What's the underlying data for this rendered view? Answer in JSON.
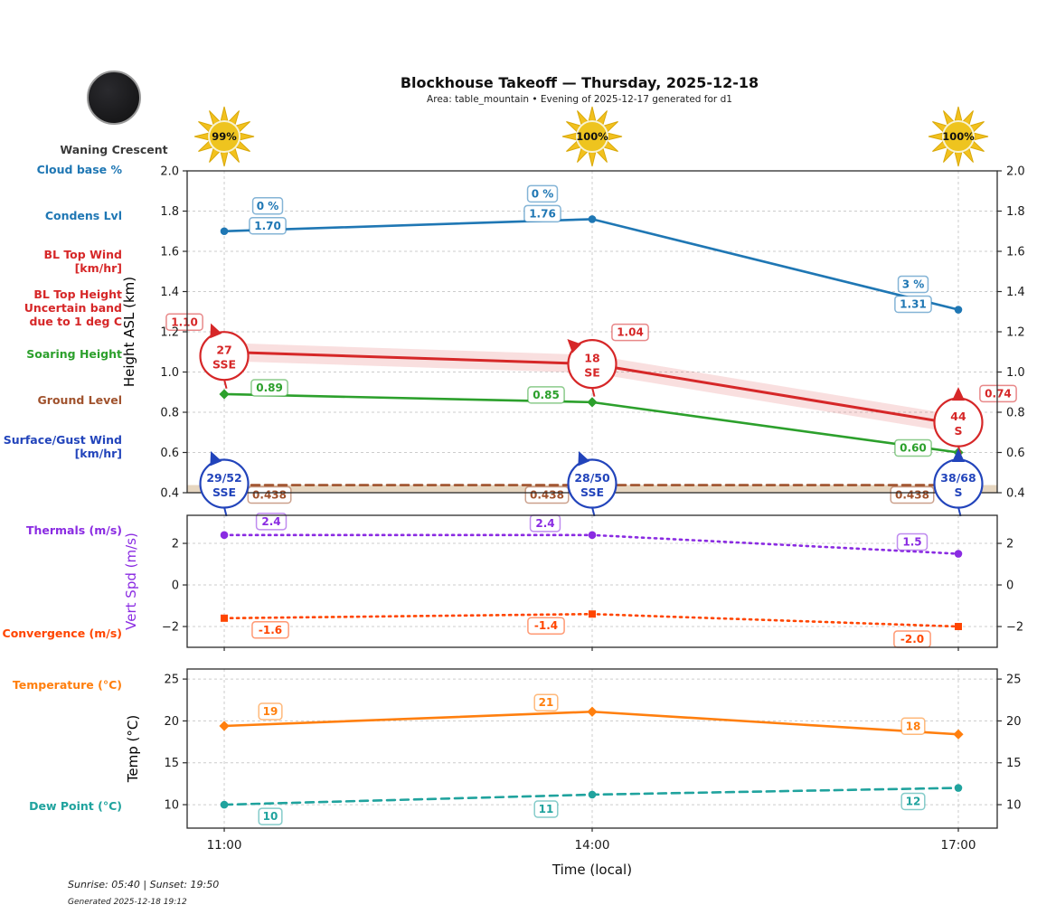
{
  "header": {
    "title": "Blockhouse Takeoff — Thursday, 2025-12-18",
    "subtitle": "Area: table_mountain • Evening of 2025-12-17 generated for d1"
  },
  "moon": {
    "label": "Waning Crescent"
  },
  "sun_markers": [
    "99%",
    "100%",
    "100%"
  ],
  "left_labels": [
    {
      "text": "Cloud base %",
      "color": "#1f77b4"
    },
    {
      "text": "Condens Lvl",
      "color": "#1f77b4"
    },
    {
      "text": "BL Top Wind\n[km/hr]",
      "color": "#d62728"
    },
    {
      "text": "BL Top Height\nUncertain band\ndue to 1 deg C",
      "color": "#d62728"
    },
    {
      "text": "Soaring Height",
      "color": "#2ca02c"
    },
    {
      "text": "Ground Level",
      "color": "#a0522d"
    },
    {
      "text": "Surface/Gust Wind\n[km/hr]",
      "color": "#2244bb"
    },
    {
      "text": "Thermals (m/s)",
      "color": "#8a2be2"
    },
    {
      "text": "Convergence (m/s)",
      "color": "#ff4500"
    },
    {
      "text": "Temperature (°C)",
      "color": "#ff7f0e"
    },
    {
      "text": "Dew Point (°C)",
      "color": "#20a39e"
    }
  ],
  "x_axis": {
    "ticks": [
      "11:00",
      "14:00",
      "17:00"
    ],
    "label": "Time (local)"
  },
  "footer": {
    "sun_times": "Sunrise: 05:40 | Sunset: 19:50",
    "generated": "Generated 2025-12-18 19:12"
  },
  "chart_data": [
    {
      "type": "line",
      "ylabel": "Height ASL (km)",
      "ylabel_color": "#000000",
      "ylim": [
        0.4,
        2.0
      ],
      "ytick_vals": [
        2.0,
        1.8,
        1.6,
        1.4,
        1.2,
        1.0,
        0.8,
        0.6,
        0.4
      ],
      "ytick_labels": [
        "2.0",
        "1.8",
        "1.6",
        "1.4",
        "1.2",
        "1.0",
        "0.8",
        "0.6",
        "0.4"
      ],
      "x": [
        "11:00",
        "14:00",
        "17:00"
      ],
      "grid": true,
      "series": [
        {
          "name": "Ground Level",
          "color": "#a0522d",
          "line": "dashed",
          "marker": "none",
          "fill_below": "#d2b48c",
          "values": [
            0.438,
            0.438,
            0.438
          ],
          "point_labels": [
            "0.438",
            "0.438",
            "0.438"
          ]
        },
        {
          "name": "BL Top Height",
          "color": "#d62728",
          "line": "solid",
          "marker": "none",
          "band": 0.045,
          "values": [
            1.1,
            1.04,
            0.74
          ],
          "point_labels": [
            "1.10",
            "1.04",
            "0.74"
          ]
        },
        {
          "name": "Condens Lvl",
          "color": "#1f77b4",
          "line": "solid",
          "marker": "circle",
          "values": [
            1.7,
            1.76,
            1.31
          ],
          "point_labels": [
            "1.70",
            "1.76",
            "1.31"
          ],
          "extra_labels": [
            "0 %",
            "0 %",
            "3 %"
          ],
          "extra_name": "Cloud base %"
        },
        {
          "name": "Soaring Height",
          "color": "#2ca02c",
          "line": "solid",
          "marker": "diamond",
          "values": [
            0.89,
            0.85,
            0.6
          ],
          "point_labels": [
            "0.89",
            "0.85",
            "0.60"
          ]
        }
      ],
      "wind_markers": [
        {
          "group": "BL Top Wind [km/hr]",
          "color": "#d62728",
          "at": [
            1.08,
            1.04,
            0.75
          ],
          "items": [
            {
              "speed": "27",
              "dir": "SSE"
            },
            {
              "speed": "18",
              "dir": "SE"
            },
            {
              "speed": "44",
              "dir": "S"
            }
          ]
        },
        {
          "group": "Surface/Gust Wind [km/hr]",
          "color": "#2244bb",
          "at": [
            0.445,
            0.445,
            0.445
          ],
          "items": [
            {
              "speed": "29/52",
              "dir": "SSE"
            },
            {
              "speed": "28/50",
              "dir": "SSE"
            },
            {
              "speed": "38/68",
              "dir": "S"
            }
          ]
        }
      ]
    },
    {
      "type": "line",
      "ylabel": "Vert Spd (m/s)",
      "ylabel_color": "#8a2be2",
      "ylim": [
        -3.0,
        3.35
      ],
      "ytick_vals": [
        2,
        0,
        -2
      ],
      "ytick_labels": [
        "2",
        "0",
        "−2"
      ],
      "x": [
        "11:00",
        "14:00",
        "17:00"
      ],
      "grid": true,
      "series": [
        {
          "name": "Thermals (m/s)",
          "color": "#8a2be2",
          "line": "dotted",
          "marker": "circle",
          "values": [
            2.4,
            2.4,
            1.5
          ],
          "point_labels": [
            "2.4",
            "2.4",
            "1.5"
          ]
        },
        {
          "name": "Convergence (m/s)",
          "color": "#ff4500",
          "line": "dotted",
          "marker": "square",
          "values": [
            -1.6,
            -1.4,
            -2.0
          ],
          "point_labels": [
            "-1.6",
            "-1.4",
            "-2.0"
          ]
        }
      ]
    },
    {
      "type": "line",
      "ylabel": "Temp (°C)",
      "ylabel_color": "#000000",
      "ylim": [
        7.2,
        26.2
      ],
      "ytick_vals": [
        25,
        20,
        15,
        10
      ],
      "ytick_labels": [
        "25",
        "20",
        "15",
        "10"
      ],
      "x": [
        "11:00",
        "14:00",
        "17:00"
      ],
      "grid": true,
      "series": [
        {
          "name": "Temperature (°C)",
          "color": "#ff7f0e",
          "line": "solid",
          "marker": "diamond",
          "values": [
            19.4,
            21.1,
            18.4
          ],
          "point_labels": [
            "19",
            "21",
            "18"
          ]
        },
        {
          "name": "Dew Point (°C)",
          "color": "#20a39e",
          "line": "dashed",
          "marker": "circle",
          "values": [
            10.0,
            11.2,
            12.0
          ],
          "point_labels": [
            "10",
            "11",
            "12"
          ]
        }
      ]
    }
  ]
}
